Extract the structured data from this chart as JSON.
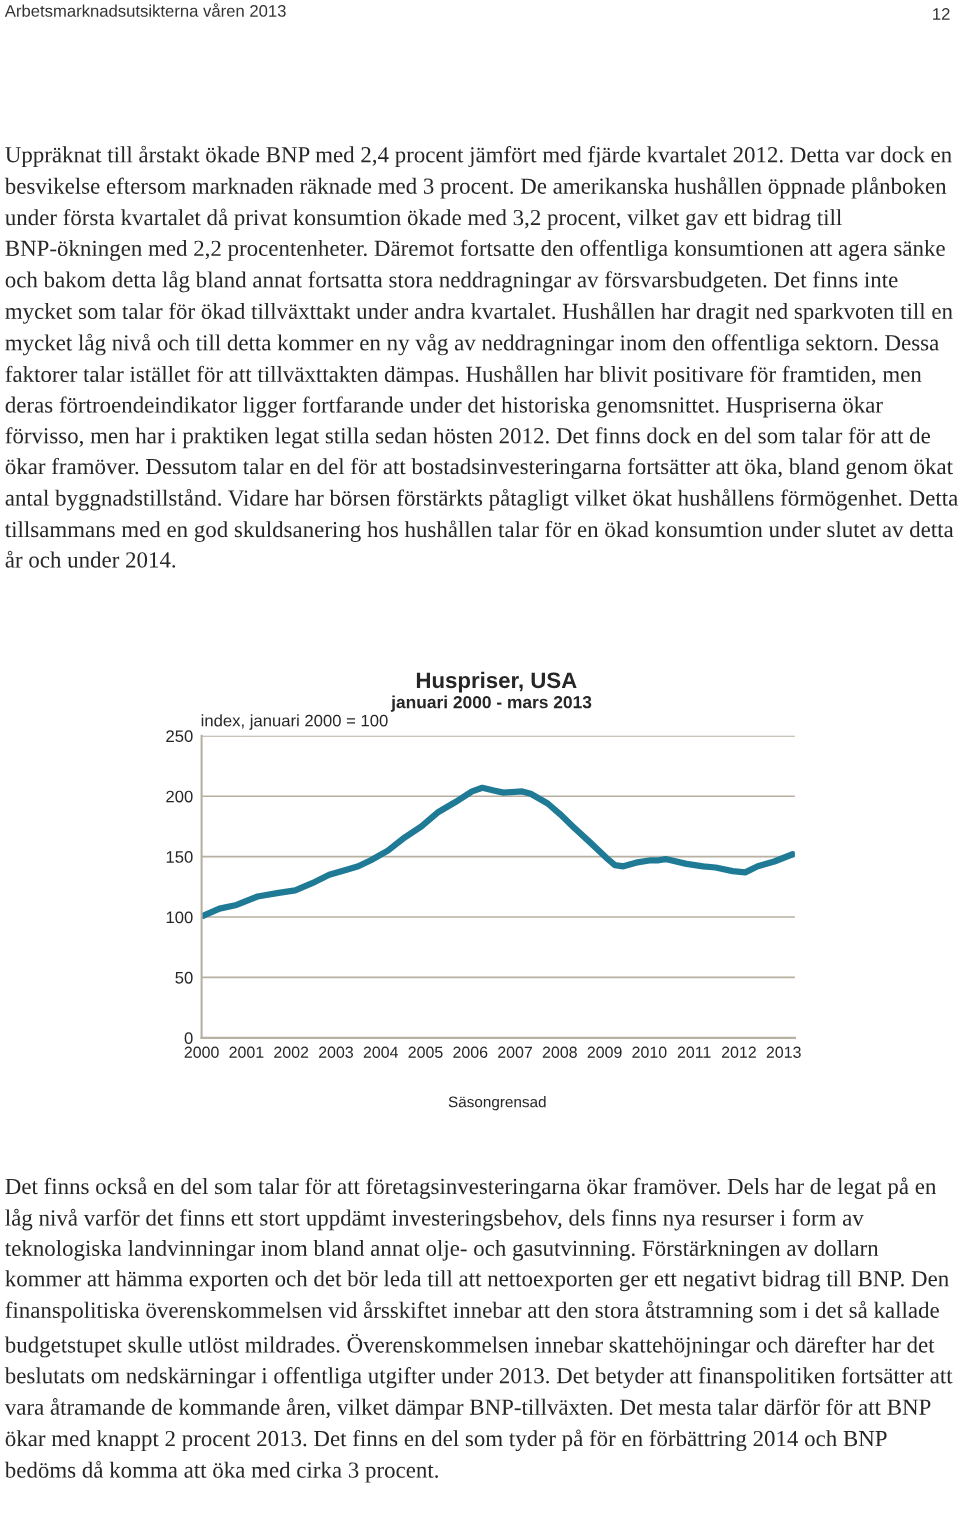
{
  "chart_data": {
    "type": "line",
    "title": "Huspriser, USA",
    "subtitle": "januari 2000 - mars 2013",
    "ylabel": "index, januari 2000 = 100",
    "annotations": [
      "Arbetsmarknadsutsikterna våren 2013",
      "12",
      "Uppräknat till årstakt ökade BNP med 2,4 procent jämfört med fjärde kvartalet 2012. Detta var dock en besvikelse eftersom marknaden räknade med 3 procent. De amerikanska hushållen öppnade plånboken under första kvartalet då privat konsumtion ökade med 3,2 procent, vilket gav ett bidrag till BNP-ökningen med 2,2 procentenheter. Däremot fortsatte den offentliga konsumtionen att agera sänke och bakom detta låg bland annat fortsatta stora neddragningar av försvarsbudgeten. Det finns inte mycket som talar för ökad tillväxttakt under andra kvartalet. Hushållen har dragit ned sparkvoten till en mycket låg nivå och till detta kommer en ny våg av neddragningar inom den offentliga sektorn. Dessa faktorer talar istället för att tillväxttakten dämpas. Hushållen har blivit positivare för framtiden, men deras förtroendeindikator ligger fortfarande under det historiska genomsnittet. Huspriserna ökar förvisso, men har i praktiken legat stilla sedan hösten 2012. Det finns dock en del som talar för att de ökar framöver. Dessutom talar en del för att bostadsinvesteringarna fortsätter att öka, bland genom ökat antal byggnadstillstånd. Vidare har börsen förstärkts påtagligt vilket ökat hushållens förmögenhet. Detta tillsammans med en god skuldsanering hos hushållen talar för en ökad konsumtion under slutet av detta år och under 2014.",
      "Säsongrensad",
      "Det finns också en del som talar för att företagsinvesteringarna ökar framöver. Dels har de legat på en låg nivå varför det finns ett stort uppdämt investeringsbehov, dels finns nya resurser i form av teknologiska landvinningar inom bland annat olje- och gasutvinning. Förstärkningen av dollarn kommer att hämma exporten och det bör leda till att nettoexporten ger ett negativt bidrag till BNP. Den finanspolitiska överenskommelsen vid årsskiftet innebar att den stora åtstramning som i det så kallade budgetstupet skulle utlöst mildrades. Överenskommelsen innebar skattehöjningar och därefter har det beslutats om nedskärningar i offentliga utgifter under 2013. Det betyder att finanspolitiken fortsätter att vara åtramande de kommande åren, vilket dämpar BNP-tillväxten. Det mesta talar därför för att BNP ökar med knappt 2 procent 2013. Det finns en del som tyder på för en förbättring 2014 och BNP bedöms då komma att öka med cirka 3 procent."
    ],
    "x": [
      2000.03,
      2000.4,
      2000.78,
      2001.25,
      2001.72,
      2002.09,
      2002.47,
      2002.85,
      2003.22,
      2003.5,
      2003.78,
      2004.16,
      2004.54,
      2004.91,
      2005.29,
      2005.66,
      2006.04,
      2006.27,
      2006.5,
      2006.74,
      2007.16,
      2007.35,
      2007.73,
      2008.01,
      2008.29,
      2008.67,
      2009.04,
      2009.23,
      2009.42,
      2009.7,
      2010.03,
      2010.21,
      2010.36,
      2010.83,
      2011.2,
      2011.48,
      2011.86,
      2012.14,
      2012.42,
      2012.79,
      2013.2
    ],
    "series": [
      {
        "color": "#1f7a96",
        "values": [
          101,
          107,
          110,
          117,
          120,
          122,
          128,
          135,
          139,
          142,
          147,
          155,
          166,
          175,
          187,
          195,
          204,
          207,
          205,
          203,
          204,
          202,
          194,
          185,
          175,
          162,
          149,
          143,
          142,
          145,
          147,
          147,
          148,
          144,
          142,
          141,
          138,
          137,
          142,
          146,
          152
        ]
      }
    ],
    "xlim": [
      2000,
      2013.25
    ],
    "xticks": [
      2000,
      2001,
      2002,
      2003,
      2004,
      2005,
      2006,
      2007,
      2008,
      2009,
      2010,
      2011,
      2012,
      2013
    ],
    "ylim": [
      0,
      250
    ],
    "yticks": [
      0,
      50,
      100,
      150,
      200,
      250
    ],
    "grid": "y",
    "legend": false,
    "marker": "none",
    "line_style": "solid"
  }
}
